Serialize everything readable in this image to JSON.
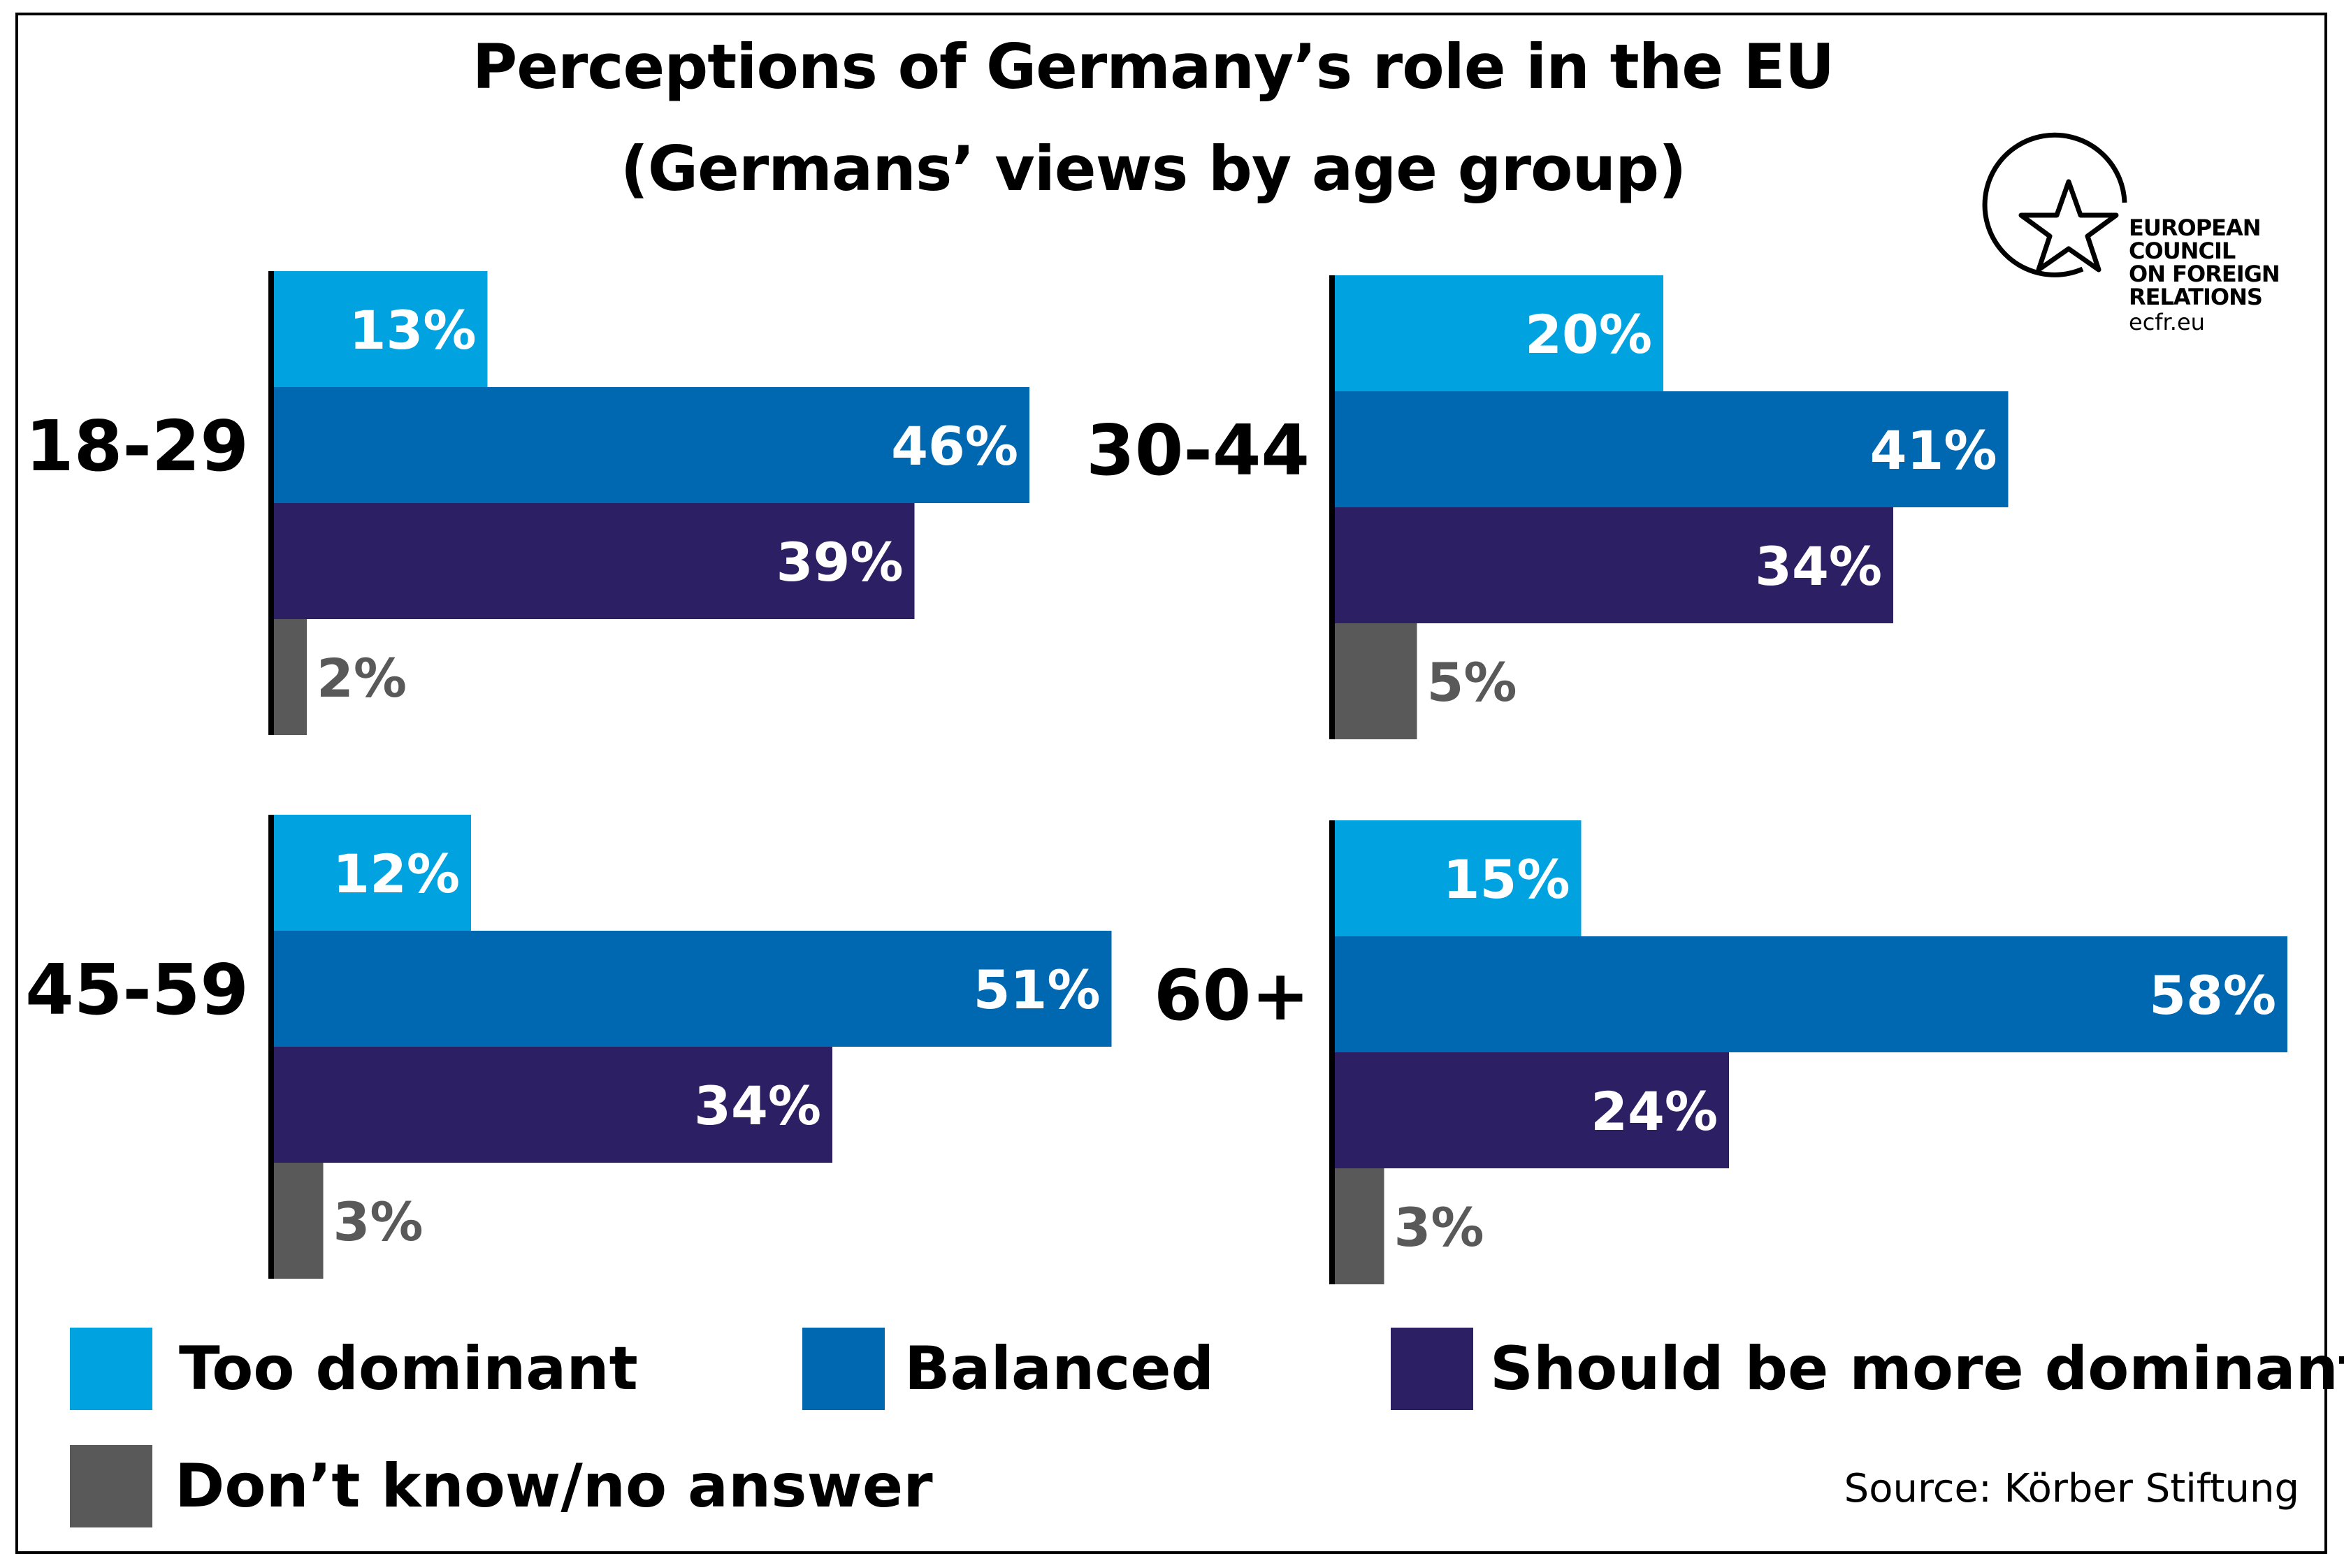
{
  "title_line1": "Perceptions of Germany’s role in the EU",
  "title_line2": "(Germans’ views by age group)",
  "source": "Source: Körber Stiftung",
  "logo": {
    "lines": [
      "EUROPEAN",
      "COUNCIL",
      "ON FOREIGN",
      "RELATIONS"
    ],
    "url": "ecfr.eu"
  },
  "colors": {
    "too_dominant": "#00a3e0",
    "balanced": "#0067b1",
    "more_dominant": "#2d1f63",
    "dont_know": "#595959",
    "inside_label": "#ffffff",
    "outside_label": "#595959"
  },
  "legend": [
    {
      "label": "Too dominant",
      "color": "#00a3e0"
    },
    {
      "label": "Balanced",
      "color": "#0067b1"
    },
    {
      "label": "Should be more dominant",
      "color": "#2d1f63"
    },
    {
      "label": "Don’t know/no answer",
      "color": "#595959"
    }
  ],
  "chart_data": {
    "type": "bar",
    "orientation": "horizontal",
    "unit": "%",
    "xlim": [
      0,
      58
    ],
    "categories": [
      "Too dominant",
      "Balanced",
      "Should be more dominant",
      "Don’t know/no answer"
    ],
    "panels": [
      {
        "group": "18-29",
        "values": [
          13,
          46,
          39,
          2
        ]
      },
      {
        "group": "30-44",
        "values": [
          20,
          41,
          34,
          5
        ]
      },
      {
        "group": "45-59",
        "values": [
          12,
          51,
          34,
          3
        ]
      },
      {
        "group": "60+",
        "values": [
          15,
          58,
          24,
          3
        ]
      }
    ]
  }
}
